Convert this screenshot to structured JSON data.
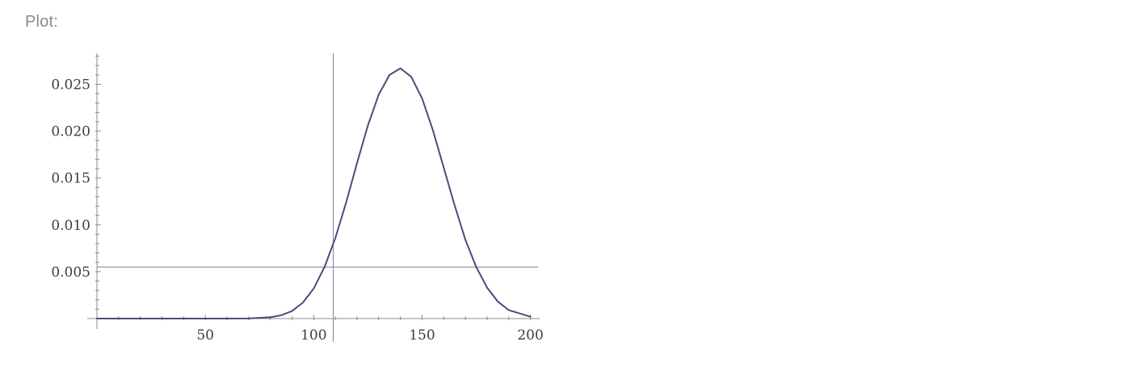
{
  "pod": {
    "title": "Plot:"
  },
  "colors": {
    "curve": "#4b4b7d",
    "axis": "#8c8c8c",
    "guide": "#7d7d96",
    "label": "#3c3c3c"
  },
  "chart_data": {
    "type": "line",
    "title": "",
    "xlabel": "",
    "ylabel": "",
    "xlim": [
      0,
      205
    ],
    "ylim": [
      0,
      0.028
    ],
    "x_ticks": [
      50,
      100,
      150,
      200
    ],
    "x_tick_labels": [
      "50",
      "100",
      "150",
      "200"
    ],
    "y_ticks": [
      0.005,
      0.01,
      0.015,
      0.02,
      0.025
    ],
    "y_tick_labels": [
      "0.005",
      "0.010",
      "0.015",
      "0.020",
      "0.025"
    ],
    "grid": false,
    "series": [
      {
        "x": [
          0,
          20,
          40,
          60,
          70,
          80,
          85,
          90,
          95,
          100,
          105,
          110,
          115,
          120,
          125,
          130,
          135,
          140,
          145,
          150,
          155,
          160,
          165,
          170,
          175,
          180,
          185,
          190,
          200
        ],
        "y": [
          0,
          0,
          0,
          0,
          1e-05,
          0.00014,
          0.00035,
          0.0008,
          0.0017,
          0.0032,
          0.0055,
          0.0086,
          0.0124,
          0.0166,
          0.0206,
          0.0239,
          0.026,
          0.0267,
          0.0258,
          0.0235,
          0.0201,
          0.0161,
          0.0121,
          0.0084,
          0.0055,
          0.0033,
          0.0018,
          0.0009,
          0.0002
        ]
      }
    ],
    "reference_lines": {
      "vertical_x": 109,
      "horizontal_y": 0.0055
    }
  }
}
